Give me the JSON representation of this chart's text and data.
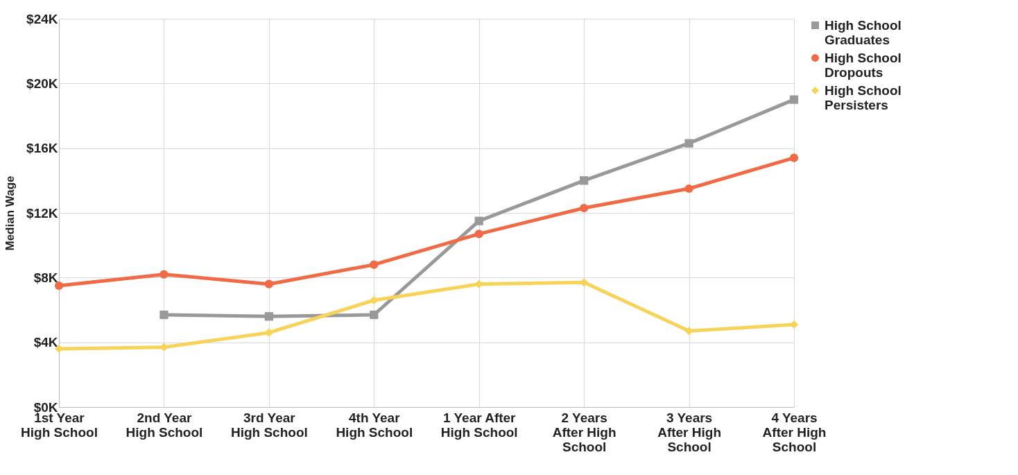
{
  "chart_data": {
    "type": "line",
    "ylabel": "Median Wage",
    "categories": [
      "1st Year High School",
      "2nd Year High School",
      "3rd Year High School",
      "4th Year High School",
      "1 Year After High School",
      "2 Years After High School",
      "3 Years After High School",
      "4 Years After High School"
    ],
    "series": [
      {
        "name": "High School Graduates",
        "color": "#999999",
        "marker": "square",
        "values": [
          null,
          5.7,
          5.6,
          5.7,
          11.5,
          14.0,
          16.3,
          19.0
        ]
      },
      {
        "name": "High School Dropouts",
        "color": "#ef6a45",
        "marker": "circle",
        "values": [
          7.5,
          8.2,
          7.6,
          8.8,
          10.7,
          12.3,
          13.5,
          15.4
        ]
      },
      {
        "name": "High School Persisters",
        "color": "#f8d35a",
        "marker": "diamond",
        "values": [
          3.6,
          3.7,
          4.6,
          6.6,
          7.6,
          7.7,
          4.7,
          5.1
        ]
      }
    ],
    "ylim": [
      0,
      24
    ],
    "yticks": [
      {
        "value": 0,
        "label": "$0K"
      },
      {
        "value": 4,
        "label": "$4K"
      },
      {
        "value": 8,
        "label": "$8K"
      },
      {
        "value": 12,
        "label": "$12K"
      },
      {
        "value": 16,
        "label": "$16K"
      },
      {
        "value": 20,
        "label": "$20K"
      },
      {
        "value": 24,
        "label": "$24K"
      }
    ],
    "grid": true,
    "legend": "right",
    "line_style": "solid"
  }
}
